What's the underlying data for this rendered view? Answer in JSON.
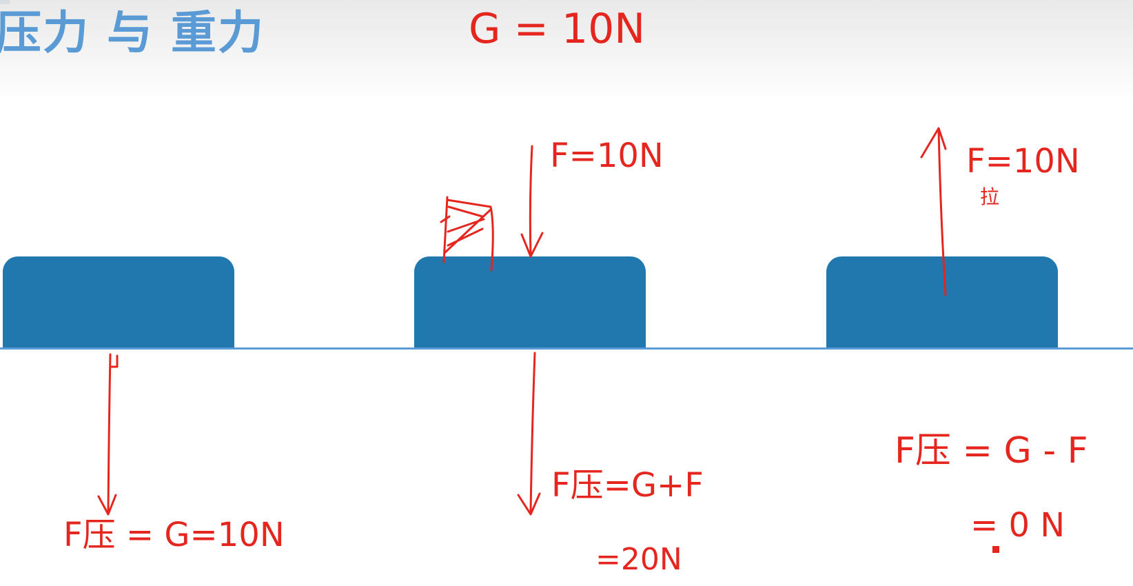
{
  "title": "压力 与 重力",
  "annotations": {
    "gravity": "G = 10N",
    "push_force": "F=10N",
    "pull_force": "F=10N",
    "pull_label": "拉",
    "pressure_1": "F压 = G=10N",
    "pressure_2": "F压=G+F",
    "pressure_2_result": "=20N",
    "pressure_3": "F压 = G - F",
    "pressure_3_result": "= 0 N"
  },
  "colors": {
    "title": "#5b9bd5",
    "block": "#2178ae",
    "ground": "#5b9bd5",
    "ink": "#e5261f"
  }
}
